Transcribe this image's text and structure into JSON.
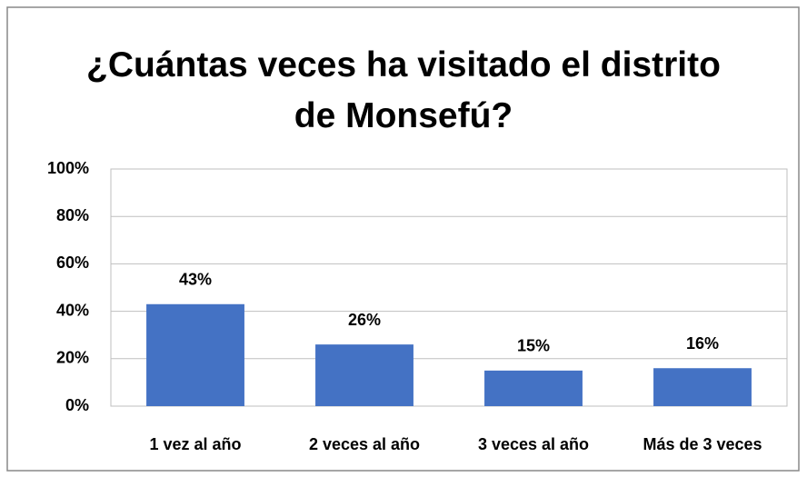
{
  "chart_data": {
    "type": "bar",
    "title": "¿Cuántas veces ha visitado el distrito de Monsefú?",
    "categories": [
      "1 vez al año",
      "2 veces al año",
      "3 veces al año",
      "Más de 3 veces"
    ],
    "values": [
      43,
      26,
      15,
      16
    ],
    "value_labels": [
      "43%",
      "26%",
      "15%",
      "16%"
    ],
    "color": "#4472c4",
    "ylim": [
      0,
      100
    ],
    "yticks": [
      {
        "value": 0,
        "label": "0%"
      },
      {
        "value": 20,
        "label": "20%"
      },
      {
        "value": 40,
        "label": "40%"
      },
      {
        "value": 60,
        "label": "60%"
      },
      {
        "value": 80,
        "label": "80%"
      },
      {
        "value": 100,
        "label": "100%"
      }
    ],
    "grid": true
  }
}
